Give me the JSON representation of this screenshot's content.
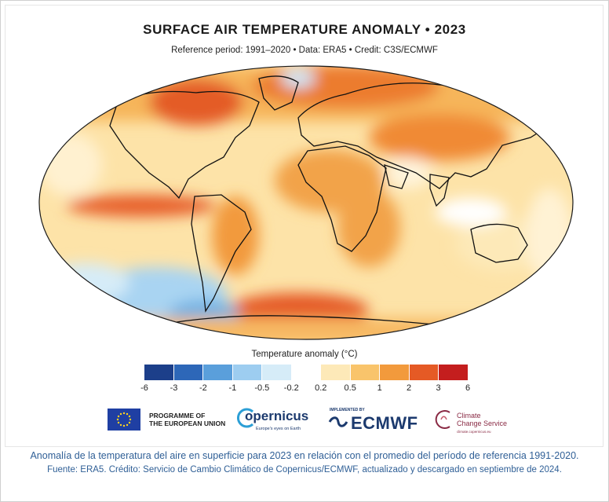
{
  "figure": {
    "title": "SURFACE AIR TEMPERATURE ANOMALY • 2023",
    "subtitle": "Reference period: 1991–2020 • Data: ERA5 • Credit: C3S/ECMWF"
  },
  "legend": {
    "title": "Temperature anomaly (°C)",
    "ticks": [
      "-6",
      "-3",
      "-2",
      "-1",
      "-0.5",
      "-0.2",
      "0.2",
      "0.5",
      "1",
      "2",
      "3",
      "6"
    ],
    "colors": [
      "#1c3f8a",
      "#2d67b8",
      "#5a9fdb",
      "#9dcdf0",
      "#d6ecf8",
      "#ffffff",
      "#fde9b8",
      "#f9c46b",
      "#f29a3c",
      "#e55a25",
      "#c41e1e"
    ]
  },
  "logos": {
    "eu_line1": "PROGRAMME OF",
    "eu_line2": "THE EUROPEAN UNION",
    "copernicus": "opernicus",
    "copernicus_tagline": "Europe's eyes on Earth",
    "ecmwf_implemented": "IMPLEMENTED BY",
    "ecmwf": "ECMWF",
    "c3s_line1": "Climate",
    "c3s_line2": "Change Service",
    "c3s_url": "climate.copernicus.eu"
  },
  "caption": {
    "line1": "Anomalía de la temperatura del aire en superficie para 2023 en relación con el promedio del período de referencia 1991-2020.",
    "line2": "Fuente: ERA5. Crédito: Servicio de Cambio Climático de Copernicus/ECMWF, actualizado y descargado en septiembre de 2024."
  }
}
